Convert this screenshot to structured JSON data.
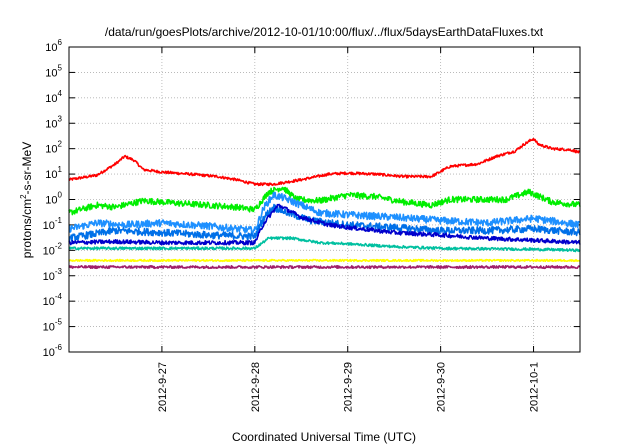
{
  "chart_data": {
    "type": "line",
    "title": "/data/run/goesPlots/archive/2012-10-01/10:00/flux/../flux/5daysEarthDataFluxes.txt",
    "xlabel": "Coordinated Universal Time (UTC)",
    "ylabel_parts": [
      "protons/cm",
      "2",
      "-s-sr-MeV"
    ],
    "yscale": "log",
    "ylim_exp": [
      -6,
      6
    ],
    "y_ticks": [
      {
        "base": "10",
        "exp": "-6"
      },
      {
        "base": "10",
        "exp": "-5"
      },
      {
        "base": "10",
        "exp": "-4"
      },
      {
        "base": "10",
        "exp": "-3"
      },
      {
        "base": "10",
        "exp": "-2"
      },
      {
        "base": "10",
        "exp": "-1"
      },
      {
        "base": "10",
        "exp": "0"
      },
      {
        "base": "10",
        "exp": "1"
      },
      {
        "base": "10",
        "exp": "2"
      },
      {
        "base": "10",
        "exp": "3"
      },
      {
        "base": "10",
        "exp": "4"
      },
      {
        "base": "10",
        "exp": "5"
      },
      {
        "base": "10",
        "exp": "6"
      }
    ],
    "x_range_days": [
      0,
      5.5
    ],
    "x_ticks": [
      {
        "label": "2012-9-27",
        "day": 1
      },
      {
        "label": "2012-9-28",
        "day": 2
      },
      {
        "label": "2012-9-29",
        "day": 3
      },
      {
        "label": "2012-9-30",
        "day": 4
      },
      {
        "label": "2012-10-1",
        "day": 5
      }
    ],
    "grid": true,
    "series": [
      {
        "color": "#ff0000",
        "noise": 0.05,
        "points": [
          [
            0,
            6
          ],
          [
            0.3,
            9
          ],
          [
            0.5,
            25
          ],
          [
            0.6,
            50
          ],
          [
            0.7,
            35
          ],
          [
            0.8,
            15
          ],
          [
            1.0,
            12
          ],
          [
            1.3,
            10
          ],
          [
            1.6,
            8
          ],
          [
            1.8,
            6
          ],
          [
            2.0,
            4
          ],
          [
            2.2,
            4
          ],
          [
            2.5,
            6
          ],
          [
            2.8,
            10
          ],
          [
            3.0,
            11
          ],
          [
            3.3,
            10
          ],
          [
            3.6,
            8
          ],
          [
            3.9,
            8
          ],
          [
            4.1,
            20
          ],
          [
            4.4,
            25
          ],
          [
            4.6,
            50
          ],
          [
            4.8,
            80
          ],
          [
            4.9,
            150
          ],
          [
            5.0,
            250
          ],
          [
            5.05,
            150
          ],
          [
            5.2,
            100
          ],
          [
            5.4,
            90
          ],
          [
            5.5,
            70
          ]
        ]
      },
      {
        "color": "#00ee00",
        "noise": 0.12,
        "points": [
          [
            0,
            0.3
          ],
          [
            0.3,
            0.6
          ],
          [
            0.5,
            0.5
          ],
          [
            0.8,
            0.9
          ],
          [
            1.2,
            0.7
          ],
          [
            1.5,
            0.6
          ],
          [
            1.8,
            0.5
          ],
          [
            2.0,
            0.4
          ],
          [
            2.15,
            2
          ],
          [
            2.3,
            3
          ],
          [
            2.45,
            1
          ],
          [
            2.7,
            0.9
          ],
          [
            3.0,
            1.5
          ],
          [
            3.3,
            1.3
          ],
          [
            3.6,
            0.8
          ],
          [
            3.9,
            0.6
          ],
          [
            4.1,
            1
          ],
          [
            4.4,
            1
          ],
          [
            4.7,
            1
          ],
          [
            4.95,
            2
          ],
          [
            5.2,
            0.8
          ],
          [
            5.5,
            0.6
          ]
        ]
      },
      {
        "color": "#1e90ff",
        "noise": 0.14,
        "points": [
          [
            0,
            0.07
          ],
          [
            0.3,
            0.12
          ],
          [
            0.6,
            0.1
          ],
          [
            1.0,
            0.12
          ],
          [
            1.5,
            0.09
          ],
          [
            1.8,
            0.07
          ],
          [
            2.0,
            0.06
          ],
          [
            2.1,
            0.5
          ],
          [
            2.2,
            1.5
          ],
          [
            2.3,
            1.2
          ],
          [
            2.5,
            0.6
          ],
          [
            2.7,
            0.3
          ],
          [
            3.0,
            0.25
          ],
          [
            3.5,
            0.2
          ],
          [
            4.0,
            0.15
          ],
          [
            4.5,
            0.12
          ],
          [
            5.0,
            0.18
          ],
          [
            5.5,
            0.1
          ]
        ]
      },
      {
        "color": "#0070e8",
        "noise": 0.14,
        "points": [
          [
            0,
            0.03
          ],
          [
            0.5,
            0.06
          ],
          [
            1.0,
            0.05
          ],
          [
            1.5,
            0.04
          ],
          [
            2.0,
            0.035
          ],
          [
            2.1,
            0.2
          ],
          [
            2.2,
            0.5
          ],
          [
            2.35,
            0.3
          ],
          [
            2.6,
            0.15
          ],
          [
            3.0,
            0.1
          ],
          [
            3.5,
            0.08
          ],
          [
            4.0,
            0.06
          ],
          [
            4.5,
            0.06
          ],
          [
            5.0,
            0.07
          ],
          [
            5.5,
            0.05
          ]
        ]
      },
      {
        "color": "#0000cc",
        "noise": 0.08,
        "points": [
          [
            0,
            0.02
          ],
          [
            0.5,
            0.022
          ],
          [
            1.0,
            0.02
          ],
          [
            1.5,
            0.02
          ],
          [
            2.0,
            0.02
          ],
          [
            2.1,
            0.12
          ],
          [
            2.25,
            0.6
          ],
          [
            2.3,
            0.5
          ],
          [
            2.5,
            0.2
          ],
          [
            2.8,
            0.1
          ],
          [
            3.0,
            0.08
          ],
          [
            3.5,
            0.05
          ],
          [
            4.0,
            0.04
          ],
          [
            4.5,
            0.03
          ],
          [
            5.0,
            0.025
          ],
          [
            5.5,
            0.02
          ]
        ]
      },
      {
        "color": "#00c0a0",
        "noise": 0.05,
        "points": [
          [
            0,
            0.012
          ],
          [
            1.0,
            0.012
          ],
          [
            2.0,
            0.012
          ],
          [
            2.15,
            0.03
          ],
          [
            2.4,
            0.03
          ],
          [
            2.7,
            0.02
          ],
          [
            3.0,
            0.018
          ],
          [
            3.5,
            0.014
          ],
          [
            4.0,
            0.012
          ],
          [
            5.0,
            0.011
          ],
          [
            5.5,
            0.01
          ]
        ]
      },
      {
        "color": "#ffff00",
        "noise": 0.035,
        "points": [
          [
            0,
            0.004
          ],
          [
            1.0,
            0.004
          ],
          [
            2.0,
            0.004
          ],
          [
            3.0,
            0.004
          ],
          [
            4.0,
            0.004
          ],
          [
            5.0,
            0.004
          ],
          [
            5.5,
            0.004
          ]
        ]
      },
      {
        "color": "#a0206a",
        "noise": 0.05,
        "points": [
          [
            0,
            0.0022
          ],
          [
            1.0,
            0.0022
          ],
          [
            2.0,
            0.0022
          ],
          [
            3.0,
            0.0022
          ],
          [
            4.0,
            0.0022
          ],
          [
            5.0,
            0.0022
          ],
          [
            5.5,
            0.0022
          ]
        ]
      }
    ]
  }
}
